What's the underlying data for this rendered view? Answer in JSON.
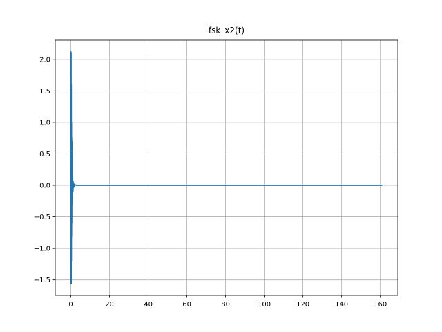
{
  "chart_data": {
    "type": "line",
    "title": "fsk_x2(t)",
    "xlabel": "",
    "ylabel": "",
    "xlim": [
      -8.05,
      169.05
    ],
    "ylim": [
      -1.745,
      2.305
    ],
    "grid": true,
    "x_ticks": [
      0,
      20,
      40,
      60,
      80,
      100,
      120,
      140,
      160
    ],
    "x_tick_labels": [
      "0",
      "20",
      "40",
      "60",
      "80",
      "100",
      "120",
      "140",
      "160"
    ],
    "y_ticks": [
      -1.5,
      -1.0,
      -0.5,
      0.0,
      0.5,
      1.0,
      1.5,
      2.0
    ],
    "y_tick_labels": [
      "−1.5",
      "−1.0",
      "−0.5",
      "0.0",
      "0.5",
      "1.0",
      "1.5",
      "2.0"
    ],
    "series": [
      {
        "color": "#1f77b4",
        "x": [
          0,
          0.05,
          0.1,
          0.15,
          0.2,
          0.25,
          0.3,
          0.35,
          0.4,
          0.45,
          0.5,
          0.55,
          0.6,
          0.65,
          0.7,
          0.8,
          0.9,
          1.0,
          1.1,
          1.2,
          1.35,
          1.5,
          1.7,
          2.0,
          3.0,
          5.0,
          10.0,
          20.0,
          40.0,
          80.0,
          120.0,
          161.0
        ],
        "y": [
          0.0,
          2.12,
          -1.55,
          2.1,
          -1.56,
          1.6,
          -1.2,
          1.0,
          -0.8,
          0.76,
          -0.6,
          0.7,
          -0.3,
          0.6,
          -0.2,
          0.12,
          -0.15,
          0.08,
          -0.1,
          0.06,
          -0.04,
          0.03,
          -0.02,
          0.01,
          0.0,
          0.0,
          0.0,
          0.0,
          0.0,
          0.0,
          0.0,
          0.0
        ]
      }
    ]
  }
}
